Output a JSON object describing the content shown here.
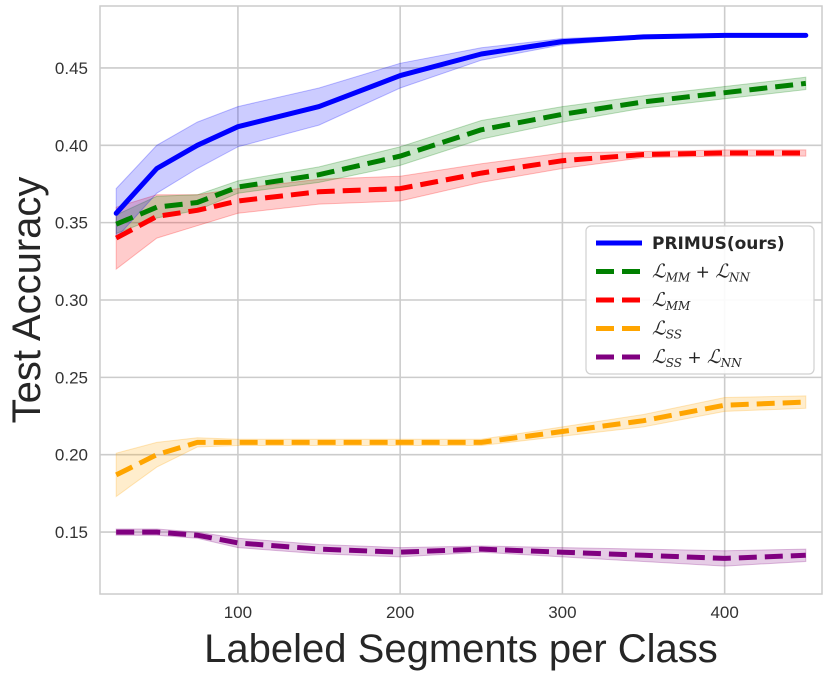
{
  "chart_data": {
    "type": "line",
    "title": "",
    "xlabel": "Labeled Segments per Class",
    "ylabel": "Test Accuracy",
    "xlim": [
      15,
      460
    ],
    "ylim": [
      0.11,
      0.49
    ],
    "xticks": [
      100,
      200,
      300,
      400
    ],
    "xtick_labels": [
      "100",
      "200",
      "300",
      "400"
    ],
    "yticks": [
      0.15,
      0.2,
      0.25,
      0.3,
      0.35,
      0.4,
      0.45
    ],
    "ytick_labels": [
      "0.15",
      "0.20",
      "0.25",
      "0.30",
      "0.35",
      "0.40",
      "0.45"
    ],
    "grid": true,
    "legend_position": "center-right",
    "x": [
      25,
      50,
      75,
      100,
      150,
      200,
      250,
      300,
      350,
      400,
      450
    ],
    "series": [
      {
        "name": "PRIMUS(ours)",
        "legend": {
          "main": "PRIMUS(ours)"
        },
        "color": "#0000ff",
        "style": "solid",
        "values": [
          0.356,
          0.385,
          0.4,
          0.412,
          0.425,
          0.445,
          0.459,
          0.467,
          0.47,
          0.471,
          0.471
        ],
        "lower": [
          0.34,
          0.369,
          0.385,
          0.399,
          0.413,
          0.437,
          0.455,
          0.465,
          0.469,
          0.47,
          0.47
        ],
        "upper": [
          0.372,
          0.4,
          0.415,
          0.425,
          0.437,
          0.453,
          0.463,
          0.469,
          0.471,
          0.472,
          0.472
        ]
      },
      {
        "name": "L_MM + L_NN",
        "legend": {
          "script": "ℒ",
          "sub": "MM",
          "op": " + ",
          "script2": "ℒ",
          "sub2": "NN"
        },
        "color": "#008000",
        "style": "dashed",
        "values": [
          0.349,
          0.36,
          0.363,
          0.373,
          0.381,
          0.393,
          0.41,
          0.42,
          0.428,
          0.434,
          0.44
        ],
        "lower": [
          0.343,
          0.353,
          0.358,
          0.369,
          0.376,
          0.387,
          0.404,
          0.415,
          0.424,
          0.43,
          0.436
        ],
        "upper": [
          0.355,
          0.367,
          0.368,
          0.377,
          0.386,
          0.399,
          0.416,
          0.425,
          0.432,
          0.438,
          0.444
        ]
      },
      {
        "name": "L_MM",
        "legend": {
          "script": "ℒ",
          "sub": "MM"
        },
        "color": "#ff0000",
        "style": "dashed",
        "values": [
          0.34,
          0.354,
          0.358,
          0.364,
          0.37,
          0.372,
          0.382,
          0.39,
          0.394,
          0.395,
          0.395
        ],
        "lower": [
          0.32,
          0.34,
          0.348,
          0.356,
          0.362,
          0.364,
          0.376,
          0.385,
          0.392,
          0.393,
          0.393
        ],
        "upper": [
          0.36,
          0.368,
          0.368,
          0.372,
          0.378,
          0.38,
          0.388,
          0.395,
          0.396,
          0.397,
          0.397
        ]
      },
      {
        "name": "L_SS",
        "legend": {
          "script": "ℒ",
          "sub": "SS"
        },
        "color": "#ffa500",
        "style": "dashed",
        "values": [
          0.187,
          0.2,
          0.208,
          0.208,
          0.208,
          0.208,
          0.208,
          0.215,
          0.222,
          0.232,
          0.234
        ],
        "lower": [
          0.173,
          0.192,
          0.205,
          0.206,
          0.206,
          0.206,
          0.206,
          0.212,
          0.218,
          0.228,
          0.23
        ],
        "upper": [
          0.201,
          0.208,
          0.211,
          0.21,
          0.21,
          0.21,
          0.21,
          0.218,
          0.226,
          0.237,
          0.238
        ]
      },
      {
        "name": "L_SS + L_NN",
        "legend": {
          "script": "ℒ",
          "sub": "SS",
          "op": " + ",
          "script2": "ℒ",
          "sub2": "NN"
        },
        "color": "#800080",
        "style": "dashed",
        "values": [
          0.15,
          0.15,
          0.148,
          0.143,
          0.139,
          0.137,
          0.139,
          0.137,
          0.135,
          0.133,
          0.135
        ],
        "lower": [
          0.148,
          0.148,
          0.146,
          0.14,
          0.136,
          0.134,
          0.137,
          0.134,
          0.131,
          0.128,
          0.131
        ],
        "upper": [
          0.152,
          0.152,
          0.15,
          0.146,
          0.142,
          0.14,
          0.141,
          0.14,
          0.139,
          0.138,
          0.139
        ]
      }
    ]
  }
}
